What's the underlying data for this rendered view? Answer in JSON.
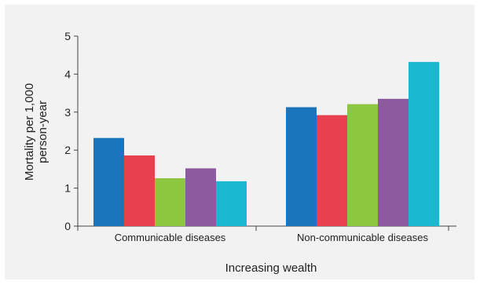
{
  "chart_data": {
    "type": "bar",
    "categories": [
      "Communicable diseases",
      "Non-communicable diseases"
    ],
    "series": [
      {
        "values": [
          2.32,
          3.13
        ],
        "color": "#1b75bc"
      },
      {
        "values": [
          1.86,
          2.92
        ],
        "color": "#e8404e"
      },
      {
        "values": [
          1.26,
          3.21
        ],
        "color": "#8dc63f"
      },
      {
        "values": [
          1.52,
          3.35
        ],
        "color": "#8b5a9f"
      },
      {
        "values": [
          1.18,
          4.32
        ],
        "color": "#1ab9d1"
      }
    ],
    "xlabel": "Increasing wealth",
    "ylabel_lines": [
      "Mortality per 1,000",
      "person-year"
    ],
    "ylim": [
      0,
      5
    ],
    "yticks": [
      "0",
      "1",
      "2",
      "3",
      "4",
      "5"
    ],
    "grid": false,
    "legend": "none"
  }
}
